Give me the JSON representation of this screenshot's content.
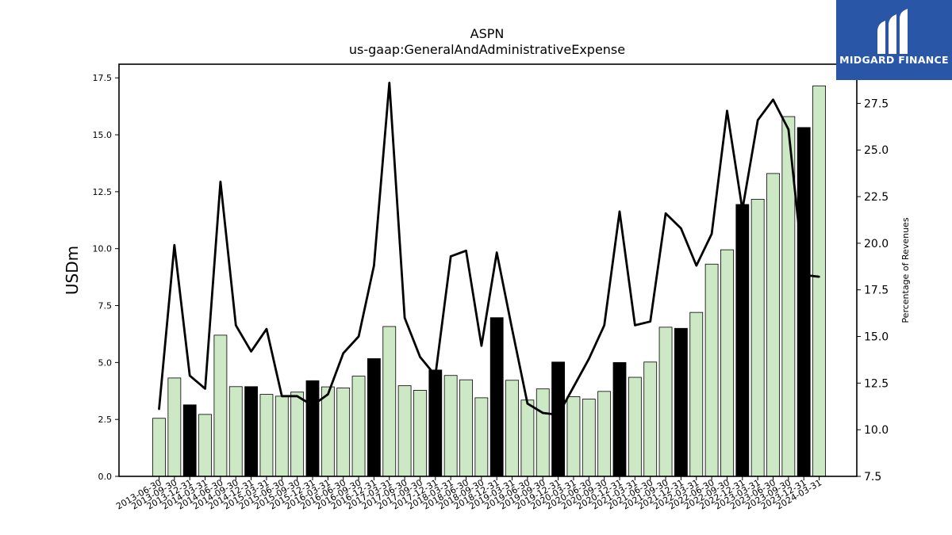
{
  "brand": {
    "name": "MIDGARD FINANCE",
    "color": "#2a56a8"
  },
  "chart_data": {
    "type": "bar",
    "title": "ASPN",
    "subtitle": "us-gaap:GeneralAndAdministrativeExpense",
    "ylabel": "USDm",
    "y2label": "Percentage of Revenues",
    "ylim": [
      0,
      18.1
    ],
    "y2lim": [
      7.5,
      29.6
    ],
    "yticks": [
      0.0,
      2.5,
      5.0,
      7.5,
      10.0,
      12.5,
      15.0,
      17.5
    ],
    "y2ticks": [
      7.5,
      10.0,
      12.5,
      15.0,
      17.5,
      20.0,
      22.5,
      25.0,
      27.5
    ],
    "grid": false,
    "colors": {
      "quarter_bar": "#cce8c4",
      "annual_bar": "#000000",
      "line": "#000000"
    },
    "categories": [
      "2013-06-30",
      "2013-09-30",
      "2013-12-31",
      "2014-03-31",
      "2014-06-30",
      "2014-09-30",
      "2014-12-31",
      "2015-03-31",
      "2015-06-30",
      "2015-09-30",
      "2015-12-31",
      "2016-03-31",
      "2016-06-30",
      "2016-09-30",
      "2016-12-31",
      "2017-03-31",
      "2017-06-30",
      "2017-09-30",
      "2017-12-31",
      "2018-03-31",
      "2018-06-30",
      "2018-09-30",
      "2018-12-31",
      "2019-03-31",
      "2019-06-30",
      "2019-09-30",
      "2019-12-31",
      "2020-03-31",
      "2020-06-30",
      "2020-09-30",
      "2020-12-31",
      "2021-03-31",
      "2021-06-30",
      "2021-09-30",
      "2021-12-31",
      "2022-03-31",
      "2022-06-30",
      "2022-09-30",
      "2022-12-31",
      "2023-03-31",
      "2023-06-30",
      "2023-09-30",
      "2023-12-31",
      "2024-03-31"
    ],
    "series": [
      {
        "role": "bars",
        "values": [
          2.55,
          4.32,
          3.14,
          2.72,
          6.2,
          3.94,
          3.94,
          3.6,
          3.52,
          3.7,
          4.2,
          3.93,
          3.88,
          4.4,
          5.17,
          6.58,
          3.98,
          3.78,
          4.67,
          4.43,
          4.24,
          3.45,
          6.97,
          4.22,
          3.35,
          3.84,
          5.02,
          3.5,
          3.39,
          3.73,
          5.0,
          4.35,
          5.02,
          6.55,
          6.5,
          7.2,
          9.32,
          9.95,
          11.94,
          12.17,
          13.3,
          15.8,
          15.32,
          17.15
        ],
        "annual": [
          false,
          false,
          true,
          false,
          false,
          false,
          true,
          false,
          false,
          false,
          true,
          false,
          false,
          false,
          true,
          false,
          false,
          false,
          true,
          false,
          false,
          false,
          true,
          false,
          false,
          false,
          true,
          false,
          false,
          false,
          true,
          false,
          false,
          false,
          true,
          false,
          false,
          false,
          true,
          false,
          false,
          false,
          true,
          false
        ]
      },
      {
        "role": "line",
        "axis": "right",
        "values": [
          11.1,
          19.9,
          12.9,
          12.2,
          23.3,
          15.6,
          14.2,
          15.4,
          11.8,
          11.8,
          11.3,
          11.9,
          14.1,
          15.0,
          18.8,
          28.6,
          16.0,
          13.9,
          12.9,
          19.3,
          19.6,
          14.5,
          19.5,
          15.4,
          11.4,
          10.9,
          10.8,
          12.3,
          13.8,
          15.6,
          21.7,
          15.6,
          15.8,
          21.6,
          20.8,
          18.8,
          20.5,
          27.1,
          21.8,
          26.6,
          27.7,
          26.1,
          18.3,
          18.2
        ]
      }
    ]
  }
}
